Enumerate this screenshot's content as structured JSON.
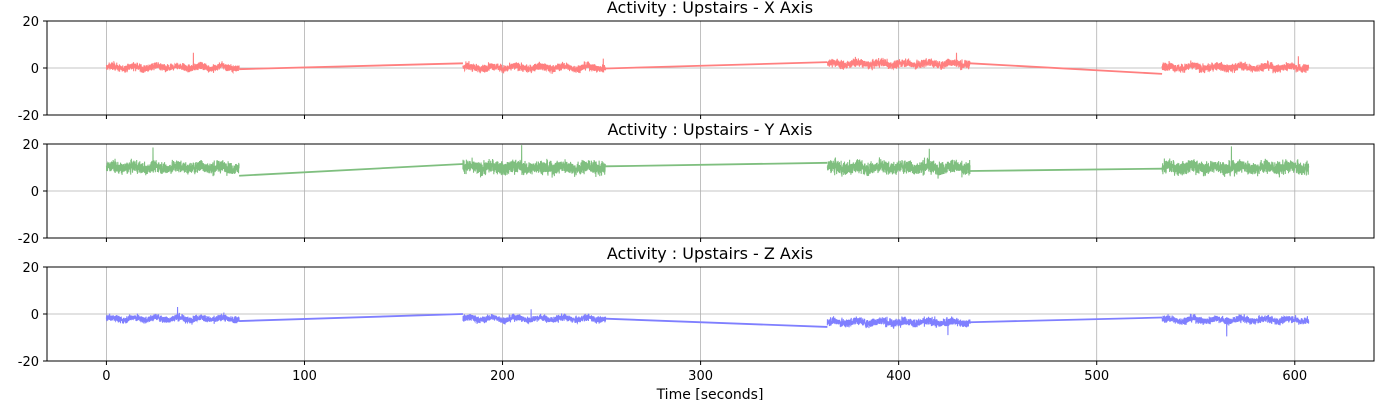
{
  "chart_data": [
    {
      "type": "line",
      "title": "Activity : Upstairs - X Axis",
      "color": "#ff7f7f",
      "ylim": [
        -20,
        20
      ],
      "yticks": [
        -20,
        0,
        20
      ],
      "xlim": [
        -30,
        640
      ],
      "xticks": [
        0,
        100,
        200,
        300,
        400,
        500,
        600
      ],
      "grid": true,
      "segments": [
        {
          "x_range": [
            0,
            67
          ],
          "mean": 0.3,
          "amplitude": 2.2,
          "peak": 6.5
        },
        {
          "x_range": [
            180,
            252
          ],
          "mean": 0.2,
          "amplitude": 2.3,
          "peak": 4.0
        },
        {
          "x_range": [
            364,
            436
          ],
          "mean": 1.8,
          "amplitude": 2.5,
          "peak": 6.5
        },
        {
          "x_range": [
            533,
            607
          ],
          "mean": 0.3,
          "amplitude": 2.5,
          "peak": 5.0
        }
      ],
      "connectors": [
        {
          "x": [
            67,
            180
          ],
          "y": [
            -0.5,
            2.0
          ]
        },
        {
          "x": [
            252,
            364
          ],
          "y": [
            -0.2,
            2.5
          ]
        },
        {
          "x": [
            436,
            533
          ],
          "y": [
            2.0,
            -2.5
          ]
        }
      ]
    },
    {
      "type": "line",
      "title": "Activity : Upstairs - Y Axis",
      "color": "#7fbf7f",
      "ylim": [
        -20,
        20
      ],
      "yticks": [
        -20,
        0,
        20
      ],
      "xlim": [
        -30,
        640
      ],
      "xticks": [
        0,
        100,
        200,
        300,
        400,
        500,
        600
      ],
      "grid": true,
      "segments": [
        {
          "x_range": [
            0,
            67
          ],
          "mean": 10,
          "amplitude": 3.5,
          "peak": 18.5
        },
        {
          "x_range": [
            180,
            252
          ],
          "mean": 10,
          "amplitude": 4.0,
          "peak": 19.5
        },
        {
          "x_range": [
            364,
            436
          ],
          "mean": 10,
          "amplitude": 4.0,
          "peak": 18.0
        },
        {
          "x_range": [
            533,
            607
          ],
          "mean": 10,
          "amplitude": 4.0,
          "peak": 19.0
        }
      ],
      "connectors": [
        {
          "x": [
            67,
            180
          ],
          "y": [
            6.5,
            11.5
          ]
        },
        {
          "x": [
            252,
            364
          ],
          "y": [
            10.5,
            12.0
          ]
        },
        {
          "x": [
            436,
            533
          ],
          "y": [
            8.5,
            9.5
          ]
        }
      ]
    },
    {
      "type": "line",
      "title": "Activity : Upstairs - Z Axis",
      "color": "#7f7fff",
      "ylim": [
        -20,
        20
      ],
      "yticks": [
        -20,
        0,
        20
      ],
      "xlim": [
        -30,
        640
      ],
      "xticks": [
        0,
        100,
        200,
        300,
        400,
        500,
        600
      ],
      "xlabel": "Time [seconds]",
      "grid": true,
      "segments": [
        {
          "x_range": [
            0,
            67
          ],
          "mean": -2,
          "amplitude": 2.0,
          "peak": 3.0
        },
        {
          "x_range": [
            180,
            252
          ],
          "mean": -2,
          "amplitude": 2.0,
          "peak": 2.0
        },
        {
          "x_range": [
            364,
            436
          ],
          "mean": -3.5,
          "amplitude": 2.5,
          "peak": -9.0
        },
        {
          "x_range": [
            533,
            607
          ],
          "mean": -2.5,
          "amplitude": 2.2,
          "peak": -9.5
        }
      ],
      "connectors": [
        {
          "x": [
            67,
            180
          ],
          "y": [
            -3.0,
            0.0
          ]
        },
        {
          "x": [
            252,
            364
          ],
          "y": [
            -2.0,
            -5.5
          ]
        },
        {
          "x": [
            436,
            533
          ],
          "y": [
            -3.5,
            -1.5
          ]
        }
      ]
    }
  ]
}
